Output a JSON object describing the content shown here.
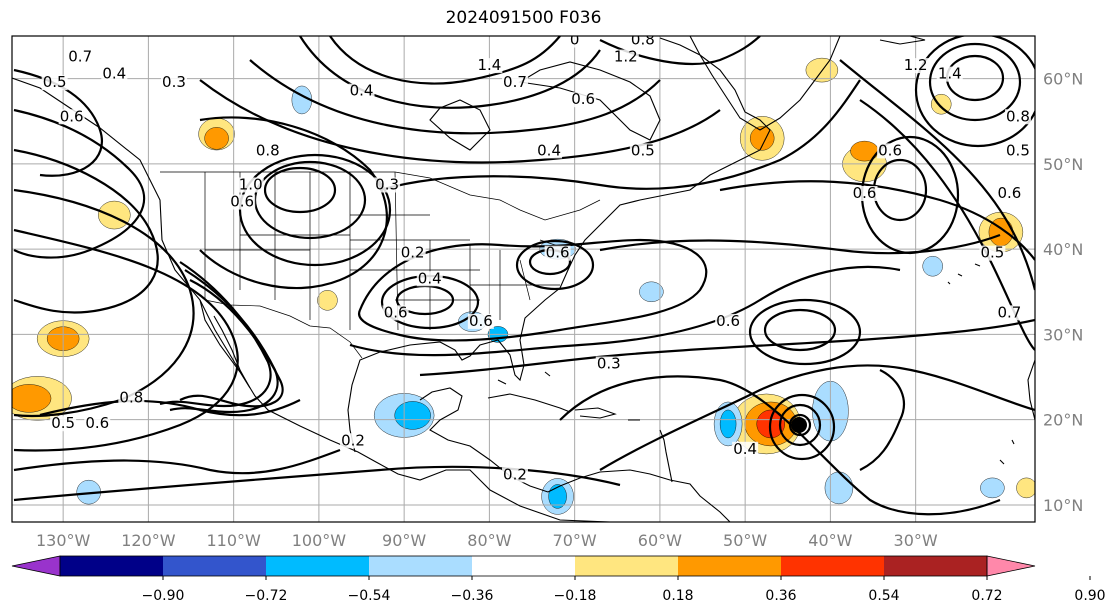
{
  "title": "2024091500 F036",
  "map": {
    "lon_labels": [
      {
        "lon": -130,
        "text": "130°W"
      },
      {
        "lon": -120,
        "text": "120°W"
      },
      {
        "lon": -110,
        "text": "110°W"
      },
      {
        "lon": -100,
        "text": "100°W"
      },
      {
        "lon": -90,
        "text": "90°W"
      },
      {
        "lon": -80,
        "text": "80°W"
      },
      {
        "lon": -70,
        "text": "70°W"
      },
      {
        "lon": -60,
        "text": "60°W"
      },
      {
        "lon": -50,
        "text": "50°W"
      },
      {
        "lon": -40,
        "text": "40°W"
      },
      {
        "lon": -30,
        "text": "30°W"
      }
    ],
    "lat_labels": [
      {
        "lat": 10,
        "text": "10°N"
      },
      {
        "lat": 20,
        "text": "20°N"
      },
      {
        "lat": 30,
        "text": "30°N"
      },
      {
        "lat": 40,
        "text": "40°N"
      },
      {
        "lat": 50,
        "text": "50°N"
      },
      {
        "lat": 60,
        "text": "60°N"
      }
    ],
    "lon_range": [
      -136,
      -16
    ],
    "lat_range": [
      8,
      65
    ],
    "grid": true,
    "colors": {
      "grid": "#aaaaaa",
      "contour": "#000000",
      "land_border": "#000000"
    }
  },
  "contour_labels": [
    {
      "lon": -128,
      "lat": 62,
      "text": "0.7"
    },
    {
      "lon": -117,
      "lat": 59,
      "text": "0.3"
    },
    {
      "lon": -124,
      "lat": 60,
      "text": "0.4"
    },
    {
      "lon": -131,
      "lat": 59,
      "text": "0.5"
    },
    {
      "lon": -129,
      "lat": 55,
      "text": "0.6"
    },
    {
      "lon": -95,
      "lat": 58,
      "text": "0.4"
    },
    {
      "lon": -80,
      "lat": 61,
      "text": "1.4"
    },
    {
      "lon": -77,
      "lat": 59,
      "text": "0.7"
    },
    {
      "lon": -70,
      "lat": 64,
      "text": "0"
    },
    {
      "lon": -62,
      "lat": 64,
      "text": "0.8"
    },
    {
      "lon": -64,
      "lat": 62,
      "text": "1.2"
    },
    {
      "lon": -69,
      "lat": 57,
      "text": "0.6"
    },
    {
      "lon": -62,
      "lat": 51,
      "text": "0.5"
    },
    {
      "lon": -73,
      "lat": 51,
      "text": "0.4"
    },
    {
      "lon": -106,
      "lat": 51,
      "text": "0.8"
    },
    {
      "lon": -108,
      "lat": 47,
      "text": "1.0"
    },
    {
      "lon": -109,
      "lat": 45,
      "text": "0.6"
    },
    {
      "lon": -92,
      "lat": 47,
      "text": "0.3"
    },
    {
      "lon": -89,
      "lat": 39,
      "text": "0.2"
    },
    {
      "lon": -87,
      "lat": 36,
      "text": "0.4"
    },
    {
      "lon": -91,
      "lat": 32,
      "text": "0.6"
    },
    {
      "lon": -81,
      "lat": 31,
      "text": "0.6"
    },
    {
      "lon": -72,
      "lat": 39,
      "text": "0.6"
    },
    {
      "lon": -66,
      "lat": 26,
      "text": "0.3"
    },
    {
      "lon": -52,
      "lat": 31,
      "text": "0.6"
    },
    {
      "lon": -122,
      "lat": 22,
      "text": "0.8"
    },
    {
      "lon": -130,
      "lat": 19,
      "text": "0.5"
    },
    {
      "lon": -126,
      "lat": 19,
      "text": "0.6"
    },
    {
      "lon": -96,
      "lat": 17,
      "text": "0.2"
    },
    {
      "lon": -77,
      "lat": 13,
      "text": "0.2"
    },
    {
      "lon": -50,
      "lat": 16,
      "text": "0.4"
    },
    {
      "lon": -30,
      "lat": 61,
      "text": "1.2"
    },
    {
      "lon": -26,
      "lat": 60,
      "text": "1.4"
    },
    {
      "lon": -33,
      "lat": 51,
      "text": "0.6"
    },
    {
      "lon": -36,
      "lat": 46,
      "text": "0.6"
    },
    {
      "lon": -18,
      "lat": 51,
      "text": "0.5"
    },
    {
      "lon": -19,
      "lat": 46,
      "text": "0.6"
    },
    {
      "lon": -21,
      "lat": 39,
      "text": "0.5"
    },
    {
      "lon": -19,
      "lat": 32,
      "text": "0.7"
    },
    {
      "lon": -18,
      "lat": 55,
      "text": "0.8"
    }
  ],
  "colorbar": {
    "ticks": [
      "−0.90",
      "−0.72",
      "−0.54",
      "−0.36",
      "−0.18",
      "0.18",
      "0.36",
      "0.54",
      "0.72",
      "0.90"
    ],
    "colors": [
      "#9933cc",
      "#000088",
      "#3355cc",
      "#00bbff",
      "#aaddff",
      "#ffffff",
      "#ffe680",
      "#ff9900",
      "#ff3300",
      "#aa2222",
      "#ff88aa"
    ]
  }
}
